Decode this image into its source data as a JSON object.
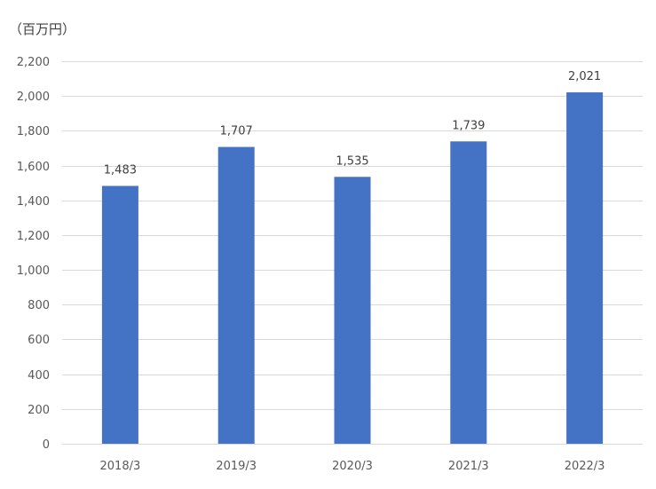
{
  "chart_data": {
    "type": "bar",
    "title": "",
    "unit_label": "（百万円）",
    "xlabel": "",
    "ylabel": "",
    "categories": [
      "2018/3",
      "2019/3",
      "2020/3",
      "2021/3",
      "2022/3"
    ],
    "values": [
      1483,
      1707,
      1535,
      1739,
      2021
    ],
    "data_labels": [
      "1,483",
      "1,707",
      "1,535",
      "1,739",
      "2,021"
    ],
    "ylim": [
      0,
      2200
    ],
    "y_ticks": [
      0,
      200,
      400,
      600,
      800,
      1000,
      1200,
      1400,
      1600,
      1800,
      2000,
      2200
    ],
    "y_tick_labels": [
      "0",
      "200",
      "400",
      "600",
      "800",
      "1,000",
      "1,200",
      "1,400",
      "1,600",
      "1,800",
      "2,000",
      "2,200"
    ],
    "grid": true,
    "legend": "none",
    "bar_color": "#4472C4"
  }
}
